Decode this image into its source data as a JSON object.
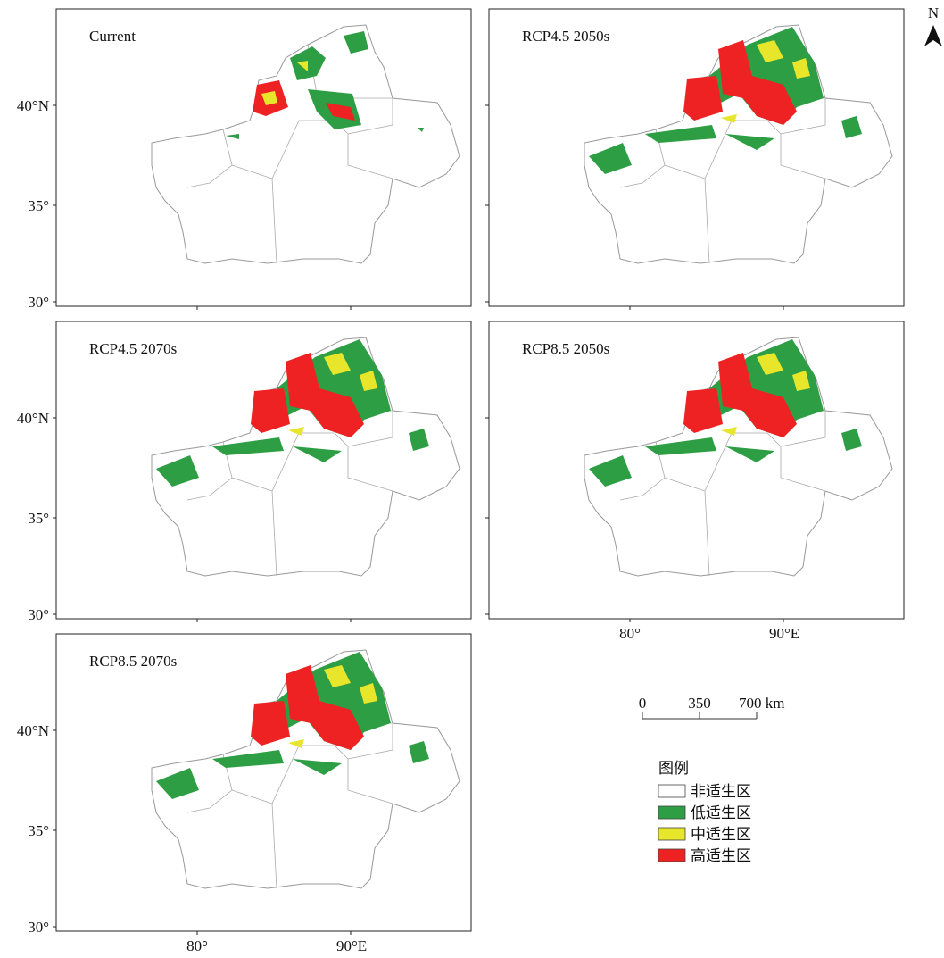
{
  "panels": [
    {
      "title": "Current"
    },
    {
      "title": "RCP4.5 2050s"
    },
    {
      "title": "RCP4.5 2070s"
    },
    {
      "title": "RCP8.5 2050s"
    },
    {
      "title": "RCP8.5 2070s"
    }
  ],
  "lat_labels": [
    "40°N",
    "35°",
    "30°"
  ],
  "lon_labels": [
    "80°",
    "90°E"
  ],
  "scale_bar": {
    "labels": [
      "0",
      "350",
      "700 km"
    ]
  },
  "north": "N",
  "legend": {
    "title": "图例",
    "items": [
      {
        "label": "非适生区",
        "color": "#ffffff"
      },
      {
        "label": "低适生区",
        "color": "#2e9e44"
      },
      {
        "label": "中适生区",
        "color": "#e8e62a"
      },
      {
        "label": "高适生区",
        "color": "#ee2222"
      }
    ]
  }
}
